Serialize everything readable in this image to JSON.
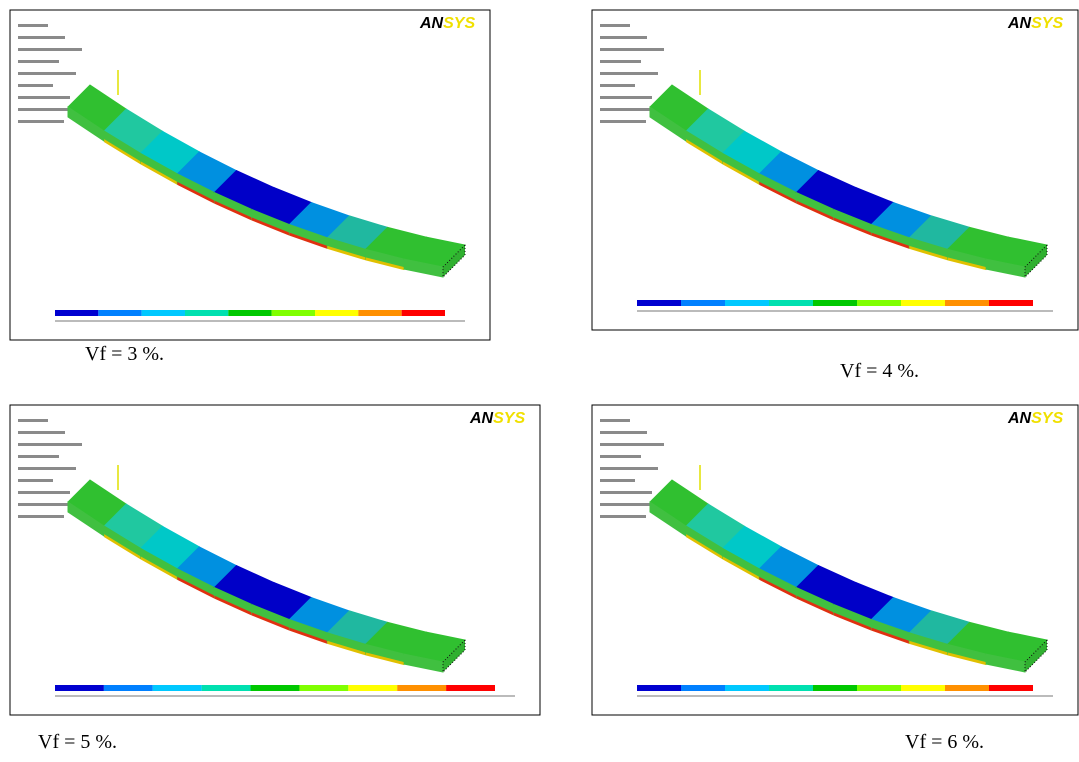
{
  "figure": {
    "panels": [
      {
        "logo_an": "AN",
        "logo_sys": "SYS",
        "caption": "Vf = 3 %."
      },
      {
        "logo_an": "AN",
        "logo_sys": "SYS",
        "caption": "Vf = 4 %."
      },
      {
        "logo_an": "AN",
        "logo_sys": "SYS",
        "caption": "Vf = 5 %."
      },
      {
        "logo_an": "AN",
        "logo_sys": "SYS",
        "caption": "Vf = 6 %."
      }
    ]
  }
}
